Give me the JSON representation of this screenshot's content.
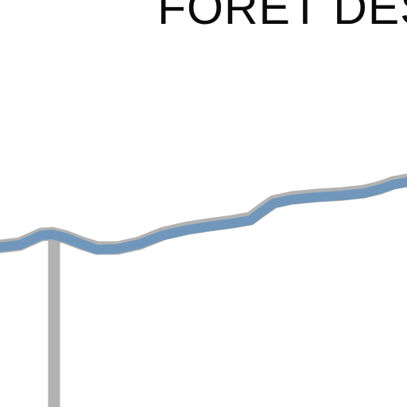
{
  "map": {
    "place_label": "FORET DES",
    "colors": {
      "background": "#ffffff",
      "label_text": "#0b0b0b",
      "route_line": "#7097bb",
      "route_casing": "#b2b2b2",
      "secondary_road": "#b2b2b2"
    }
  }
}
